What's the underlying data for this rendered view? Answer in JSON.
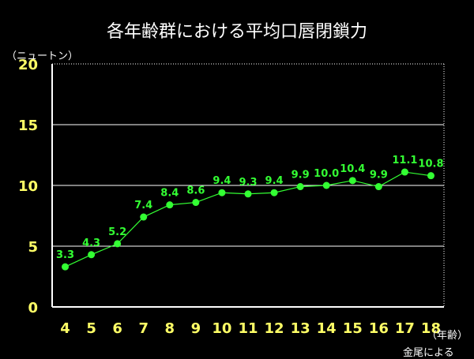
{
  "title": "各年齢群における平均口唇閉鎖力",
  "y_unit": "（ニュートン）",
  "x_unit": "（年齢）",
  "source": "金尾による",
  "colors": {
    "background": "#000000",
    "line": "#33ff33",
    "point": "#33ff33",
    "data_label": "#33ff33",
    "tick_label": "#ffff66",
    "grid": "#ffffff",
    "axis": "#ffffff"
  },
  "chart_data": {
    "type": "line",
    "title": "各年齢群における平均口唇閉鎖力",
    "xlabel": "（年齢）",
    "ylabel": "（ニュートン）",
    "x": [
      "4",
      "5",
      "6",
      "7",
      "8",
      "9",
      "10",
      "11",
      "12",
      "13",
      "14",
      "15",
      "16",
      "17",
      "18"
    ],
    "series": [
      {
        "values": [
          3.3,
          4.3,
          5.2,
          7.4,
          8.4,
          8.6,
          9.4,
          9.3,
          9.4,
          9.9,
          10.0,
          10.4,
          9.9,
          11.1,
          10.8
        ],
        "labels": [
          "3.3",
          "4.3",
          "5.2",
          "7.4",
          "8.4",
          "8.6",
          "9.4",
          "9.3",
          "9.4",
          "9.9",
          "10.0",
          "10.4",
          "9.9",
          "11.1",
          "10.8"
        ]
      }
    ],
    "y_ticks": [
      "0",
      "5",
      "10",
      "15",
      "20"
    ],
    "ylim": [
      0,
      20
    ],
    "grid": true,
    "legend": "none"
  }
}
